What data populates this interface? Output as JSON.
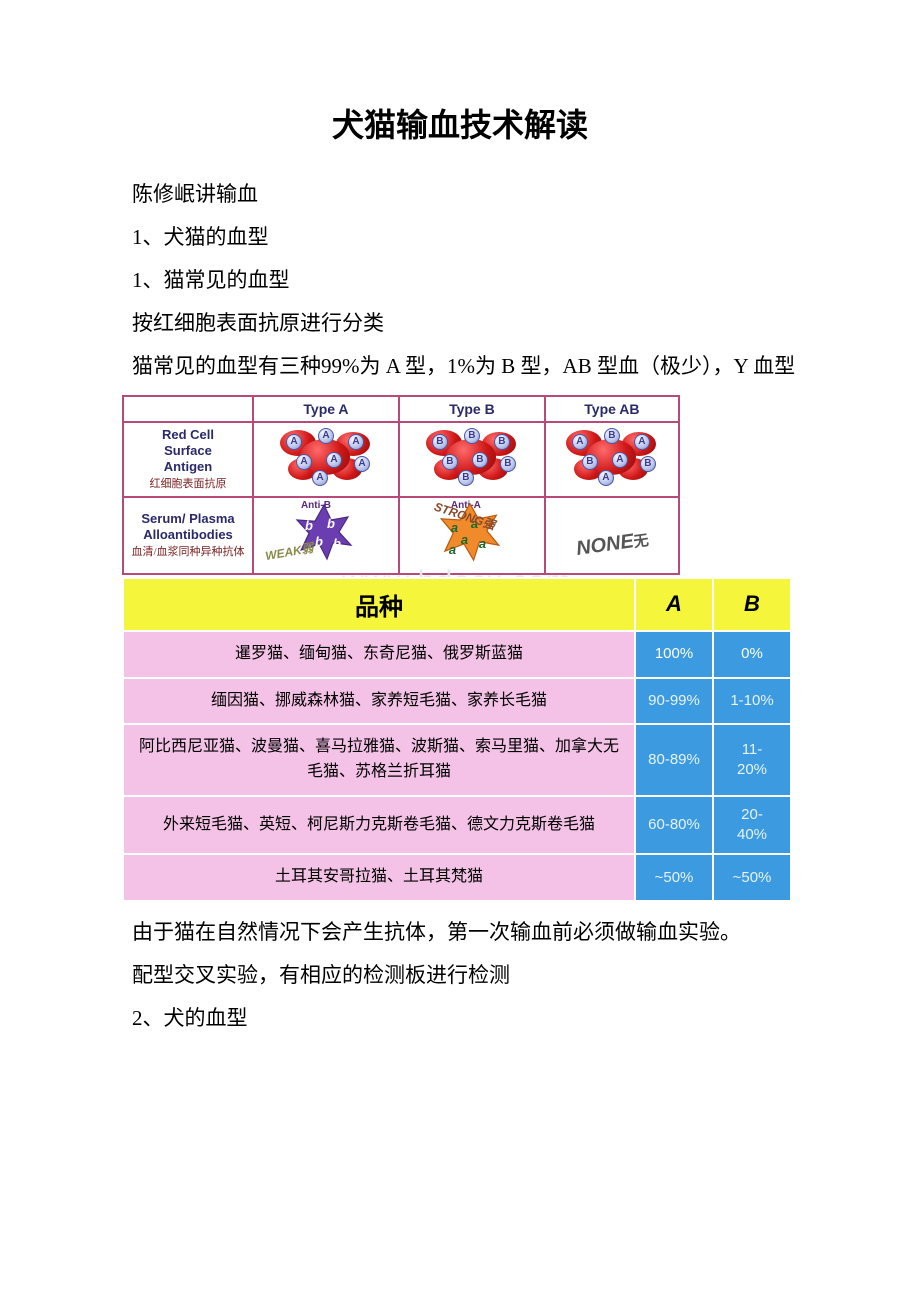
{
  "title": "犬猫输血技术解读",
  "paragraphs": {
    "p1": "陈修岷讲输血",
    "p2": "1、犬猫的血型",
    "p3": "1、猫常见的血型",
    "p4": "按红细胞表面抗原进行分类",
    "p5_pre": "猫常见的血型有三种",
    "p5_a": "99%",
    "p5_mid1": "为",
    "p5_A": " A ",
    "p5_mid2": "型，",
    "p5_b": "1%",
    "p5_mid3": "为",
    "p5_B": " B ",
    "p5_mid4": "型，",
    "p5_AB": "AB ",
    "p5_mid5": "型血（极少），",
    "p5_Y": "Y ",
    "p5_tail": "血型",
    "p6": "由于猫在自然情况下会产生抗体，第一次输血前必须做输血实验。",
    "p7": "配型交叉实验，有相应的检测板进行检测",
    "p8": "2、犬的血型"
  },
  "fig1": {
    "headers": {
      "a": "Type A",
      "b": "Type B",
      "ab": "Type AB"
    },
    "row1_label_en": "Red Cell\nSurface\nAntigen",
    "row1_label_cn": "红细胞表面抗原",
    "row2_label_en": "Serum/ Plasma\nAlloantibodies",
    "row2_label_cn": "血清/血浆同种异种抗体",
    "antiB": "Anti-B",
    "antiA": "Anti-A",
    "weak": "WEAK弱",
    "strong": "STRONG强",
    "none": "NONE",
    "none_cn": "无",
    "colors": {
      "purple": "#6a3db0",
      "purple_dark": "#4a2a80",
      "orange": "#f08a2a",
      "orange_dark": "#b85a10",
      "green": "#3aa64a"
    }
  },
  "watermark": "www.bdocx.com",
  "table2": {
    "headers": {
      "breed": "品种",
      "a": "A",
      "b": "B"
    },
    "rows": [
      {
        "breed": "暹罗猫、缅甸猫、东奇尼猫、俄罗斯蓝猫",
        "a": "100%",
        "b": "0%"
      },
      {
        "breed": "缅因猫、挪威森林猫、家养短毛猫、家养长毛猫",
        "a": "90-99%",
        "b": "1-10%"
      },
      {
        "breed": "阿比西尼亚猫、波曼猫、喜马拉雅猫、波斯猫、索马里猫、加拿大无毛猫、苏格兰折耳猫",
        "a": "80-89%",
        "b": "11-\n20%"
      },
      {
        "breed": "外来短毛猫、英短、柯尼斯力克斯卷毛猫、德文力克斯卷毛猫",
        "a": "60-80%",
        "b": "20-\n40%"
      },
      {
        "breed": "土耳其安哥拉猫、土耳其梵猫",
        "a": "~50%",
        "b": "~50%"
      }
    ],
    "colors": {
      "header_bg": "#f5f53b",
      "breed_bg": "#f4c2e6",
      "pct_bg": "#3b9ae0"
    }
  }
}
